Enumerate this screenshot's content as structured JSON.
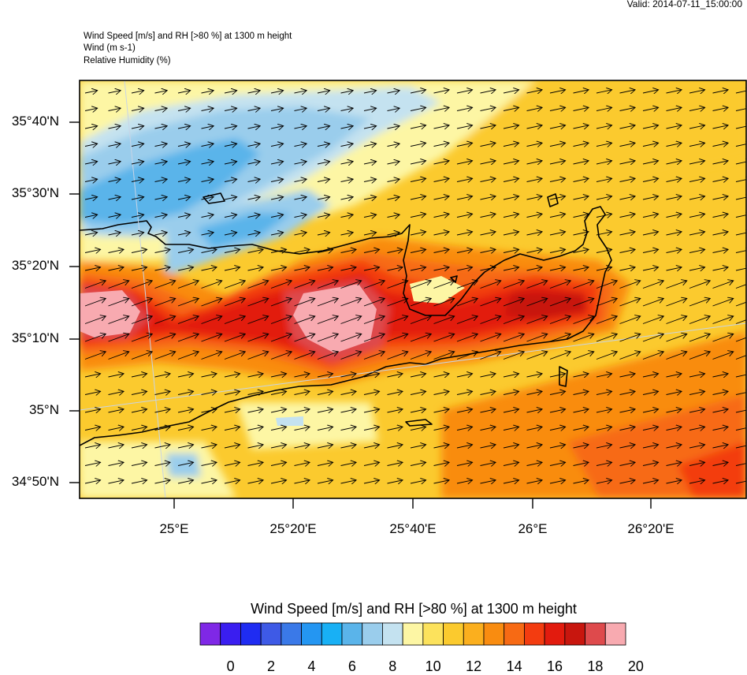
{
  "valid": "Valid: 2014-07-11_15:00:00",
  "header": {
    "line1": "Wind Speed [m/s] and RH [>80 %] at 1300 m height",
    "line2": "Wind   (m s-1)",
    "line3": "Relative Humidity   (%)"
  },
  "lat_labels": [
    "35°40'N",
    "35°30'N",
    "35°20'N",
    "35°10'N",
    "35°N",
    "34°50'N"
  ],
  "lon_labels": [
    "25°E",
    "25°20'E",
    "25°40'E",
    "26°E",
    "26°20'E"
  ],
  "colorbar": {
    "title": "Wind Speed [m/s] and RH [>80 %] at 1300 m height",
    "labels": [
      "0",
      "2",
      "4",
      "6",
      "8",
      "10",
      "12",
      "14",
      "16",
      "18",
      "20"
    ],
    "colors": [
      "#7f28e6",
      "#3a1ef0",
      "#1f2cf2",
      "#3e5ae6",
      "#3a79e8",
      "#2496f2",
      "#18b0f5",
      "#5ab4ea",
      "#9acdec",
      "#c4e2f0",
      "#fdf6a4",
      "#fce25c",
      "#fbca2e",
      "#fbaf1e",
      "#f98c10",
      "#f76a14",
      "#f33c10",
      "#e21b0e",
      "#c8160e",
      "#de4a4c",
      "#f8aab0"
    ]
  },
  "chart_data": {
    "type": "heatmap",
    "title": "Wind Speed [m/s] and RH [>80 %] at 1300 m height",
    "variable": "wind speed (m/s) at 1300 m with wind vectors",
    "lat_range": [
      34.8,
      35.75
    ],
    "lon_range": [
      24.73,
      26.58
    ],
    "color_range": [
      0,
      21
    ],
    "wind_direction": "west-southwesterly (flow toward ENE)",
    "regions": [
      {
        "area": "northwest Aegean (north of Crete)",
        "speed": 6
      },
      {
        "area": "central Crete band near 35°10'N",
        "speed": 20
      },
      {
        "area": "western Crete near 35°15'N",
        "speed": 20
      },
      {
        "area": "eastern Crete (Lasithi)",
        "speed": 18
      },
      {
        "area": "south of Crete",
        "speed": 12
      },
      {
        "area": "southeast corner",
        "speed": 17
      }
    ]
  }
}
